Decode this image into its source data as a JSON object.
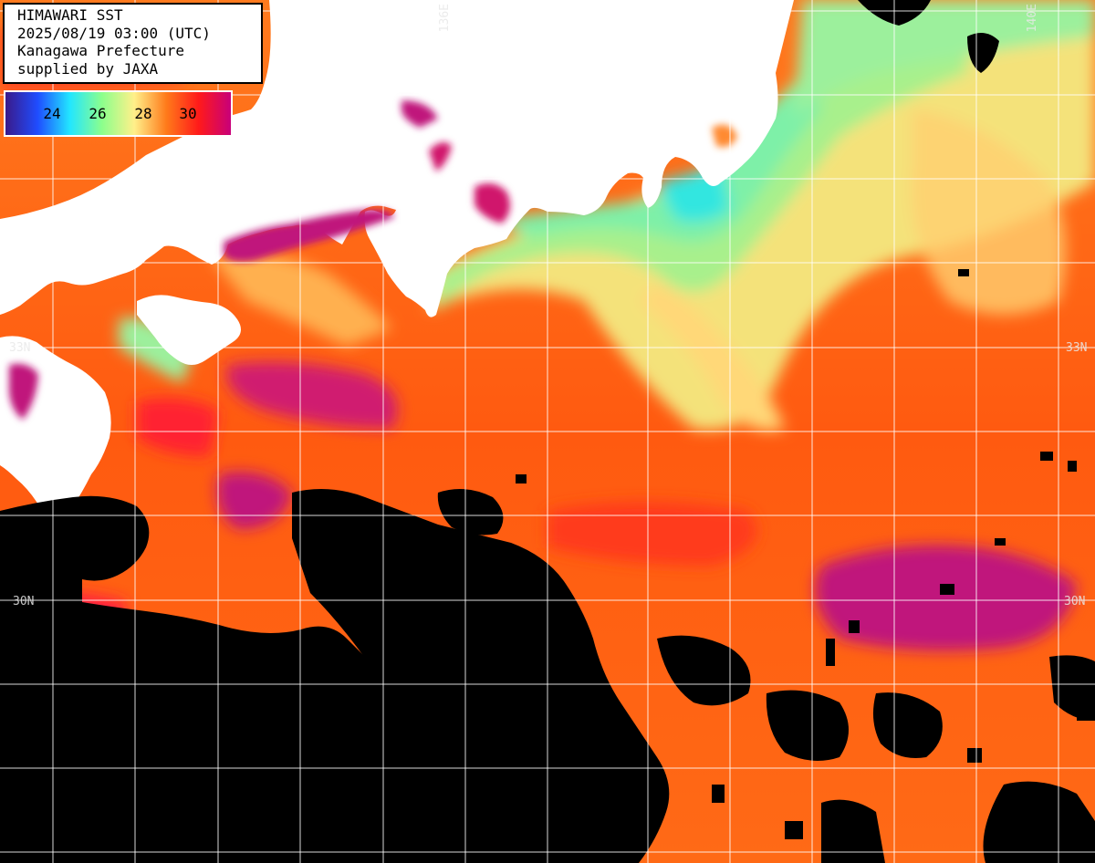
{
  "info": {
    "title": "HIMAWARI SST",
    "datetime": "2025/08/19 03:00 (UTC)",
    "region": "Kanagawa Prefecture",
    "credit": "supplied by JAXA"
  },
  "colorbar": {
    "labels": [
      "24",
      "26",
      "28",
      "30"
    ],
    "colors": {
      "purple": "#3a1a8a",
      "blue": "#1f4dff",
      "cyan": "#22e6ff",
      "green": "#8cff8c",
      "yellow": "#fff08a",
      "orange": "#ff7a1a",
      "red": "#ff1a1a",
      "magenta": "#c8007a"
    }
  },
  "grid_labels": {
    "lat_33": "33N",
    "lat_30": "30N",
    "lon_136": "136E",
    "lon_140": "140E"
  },
  "colors": {
    "land": "#ffffff",
    "cloud": "#000000",
    "warm_sea": "#ff6a12",
    "hot_sea": "#c01a8a",
    "cool_sea": "#9cf08a",
    "grid": "#ffffff"
  }
}
